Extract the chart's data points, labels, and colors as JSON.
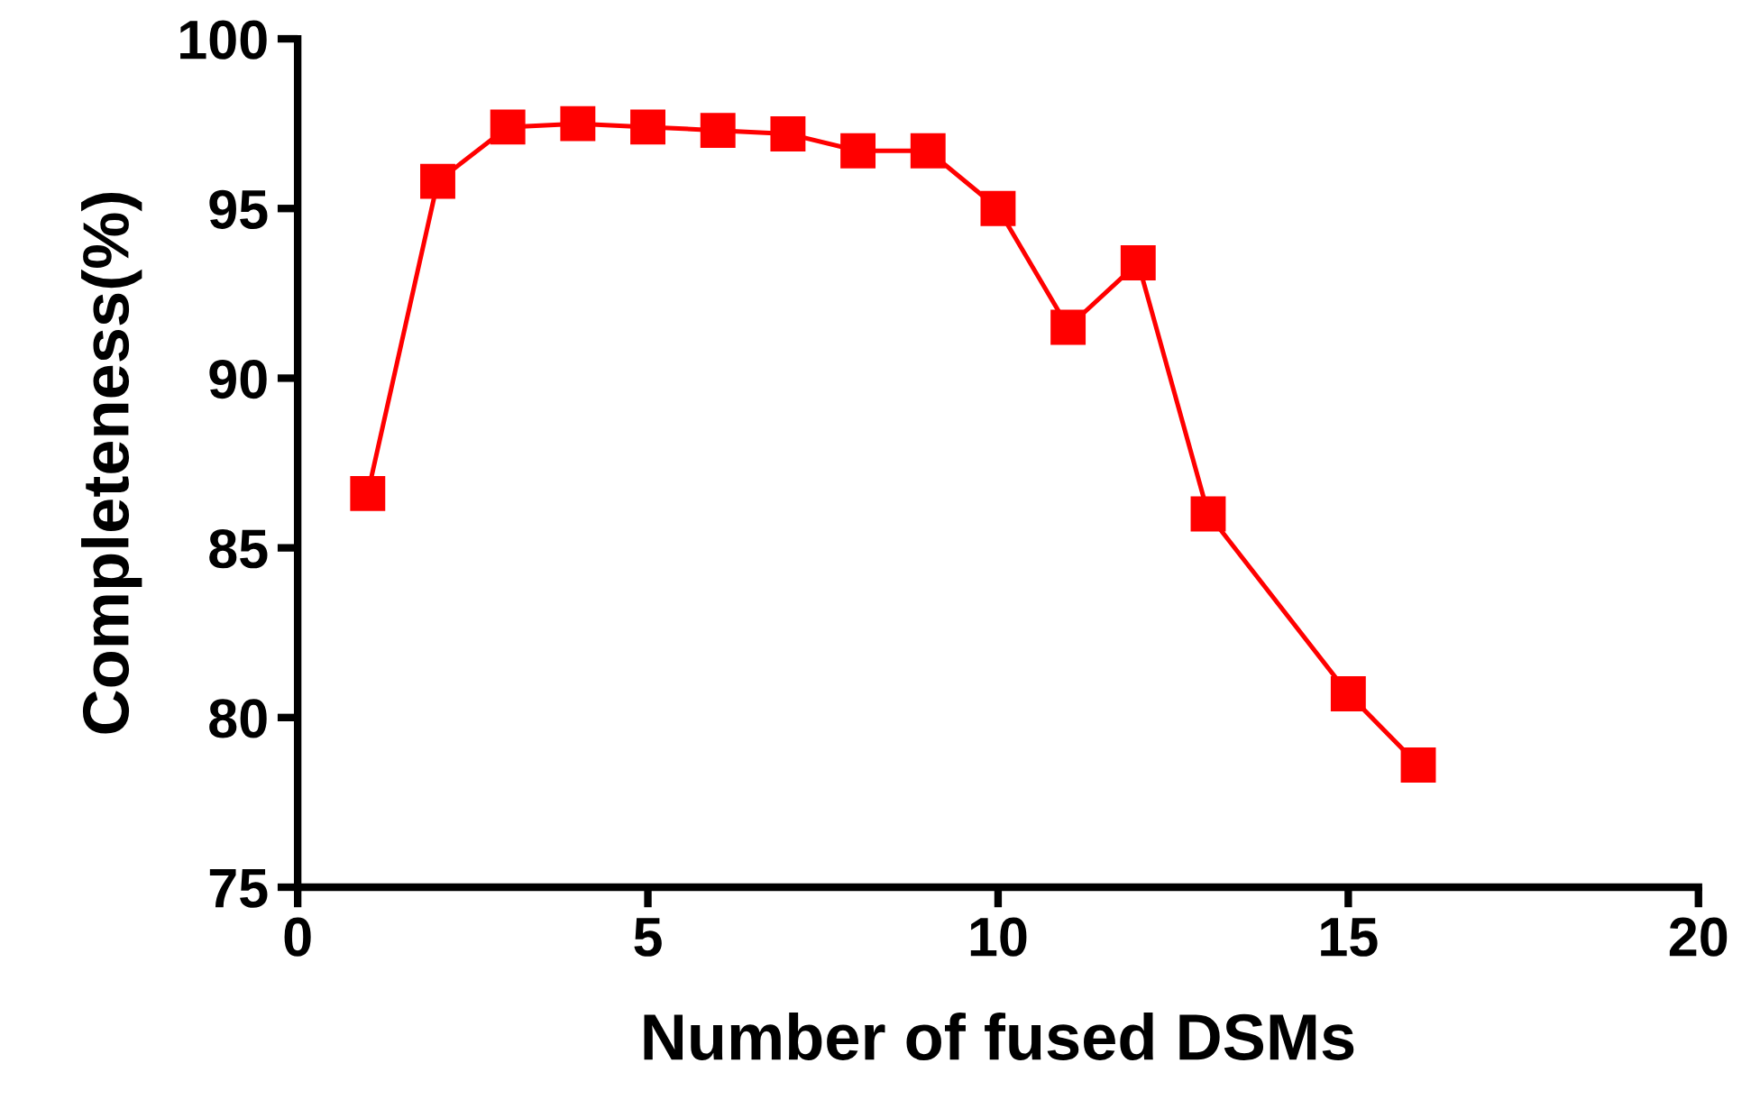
{
  "chart_data": {
    "type": "line",
    "xlabel": "Number of fused DSMs",
    "ylabel": "Completeness(%)",
    "x": [
      1,
      2,
      3,
      4,
      5,
      6,
      7,
      8,
      9,
      10,
      11,
      12,
      13,
      15,
      16
    ],
    "series": [
      {
        "color": "#ff0000",
        "values": [
          86.6,
          95.8,
          97.4,
          97.5,
          97.4,
          97.3,
          97.2,
          96.7,
          96.7,
          95.0,
          91.5,
          93.4,
          86.0,
          80.7,
          78.6
        ]
      }
    ],
    "xlim": [
      0,
      20
    ],
    "xticks": [
      0,
      5,
      10,
      15,
      20
    ],
    "ylim": [
      75,
      100
    ],
    "yticks": [
      75,
      80,
      85,
      90,
      95,
      100
    ],
    "marker": "square",
    "line_style": "solid",
    "grid": false,
    "legend": false
  }
}
